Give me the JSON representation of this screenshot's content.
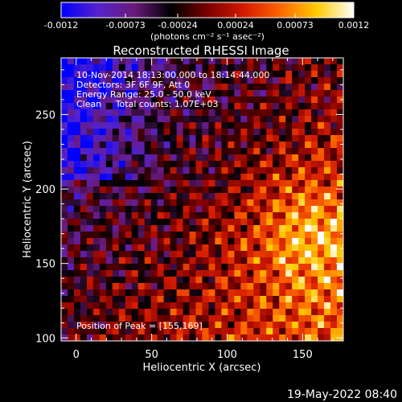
{
  "colorbar": {
    "ticks": [
      "-0.0012",
      "-0.00073",
      "-0.00024",
      "0.00024",
      "0.00073",
      "0.0012"
    ],
    "units": "(photons cm⁻² s⁻¹ asec⁻²)",
    "min": -0.0012,
    "max": 0.0012
  },
  "annotations": {
    "time_range": "10-Nov-2014 18:13:00.000 to 18:14:44.000",
    "detectors": "Detectors: 3F 6F 9F, Att 0",
    "energy": "Energy Range: 25.0 - 50.0 keV",
    "clean": "Clean     Total counts: 1.07E+03",
    "peak": "Position of Peak = [155,169]"
  },
  "footer": {
    "timestamp": "19-May-2022 08:40"
  },
  "chart_data": {
    "type": "heatmap",
    "title": "Reconstructed RHESSI Image",
    "xlabel": "Heliocentric X (arcsec)",
    "ylabel": "Heliocentric Y (arcsec)",
    "xlim": [
      -10,
      177
    ],
    "ylim": [
      98,
      288
    ],
    "x_ticks": [
      0,
      50,
      100,
      150
    ],
    "y_ticks": [
      100,
      150,
      200,
      250
    ],
    "peak_position": [
      155,
      169
    ],
    "color_scale": {
      "min": -0.0012,
      "max": 0.0012,
      "stops": [
        "#0000ff",
        "#5522cc",
        "#6a1a7a",
        "#000000",
        "#7a0000",
        "#d41a00",
        "#ff6600",
        "#ffcc00",
        "#ffffff"
      ]
    }
  }
}
